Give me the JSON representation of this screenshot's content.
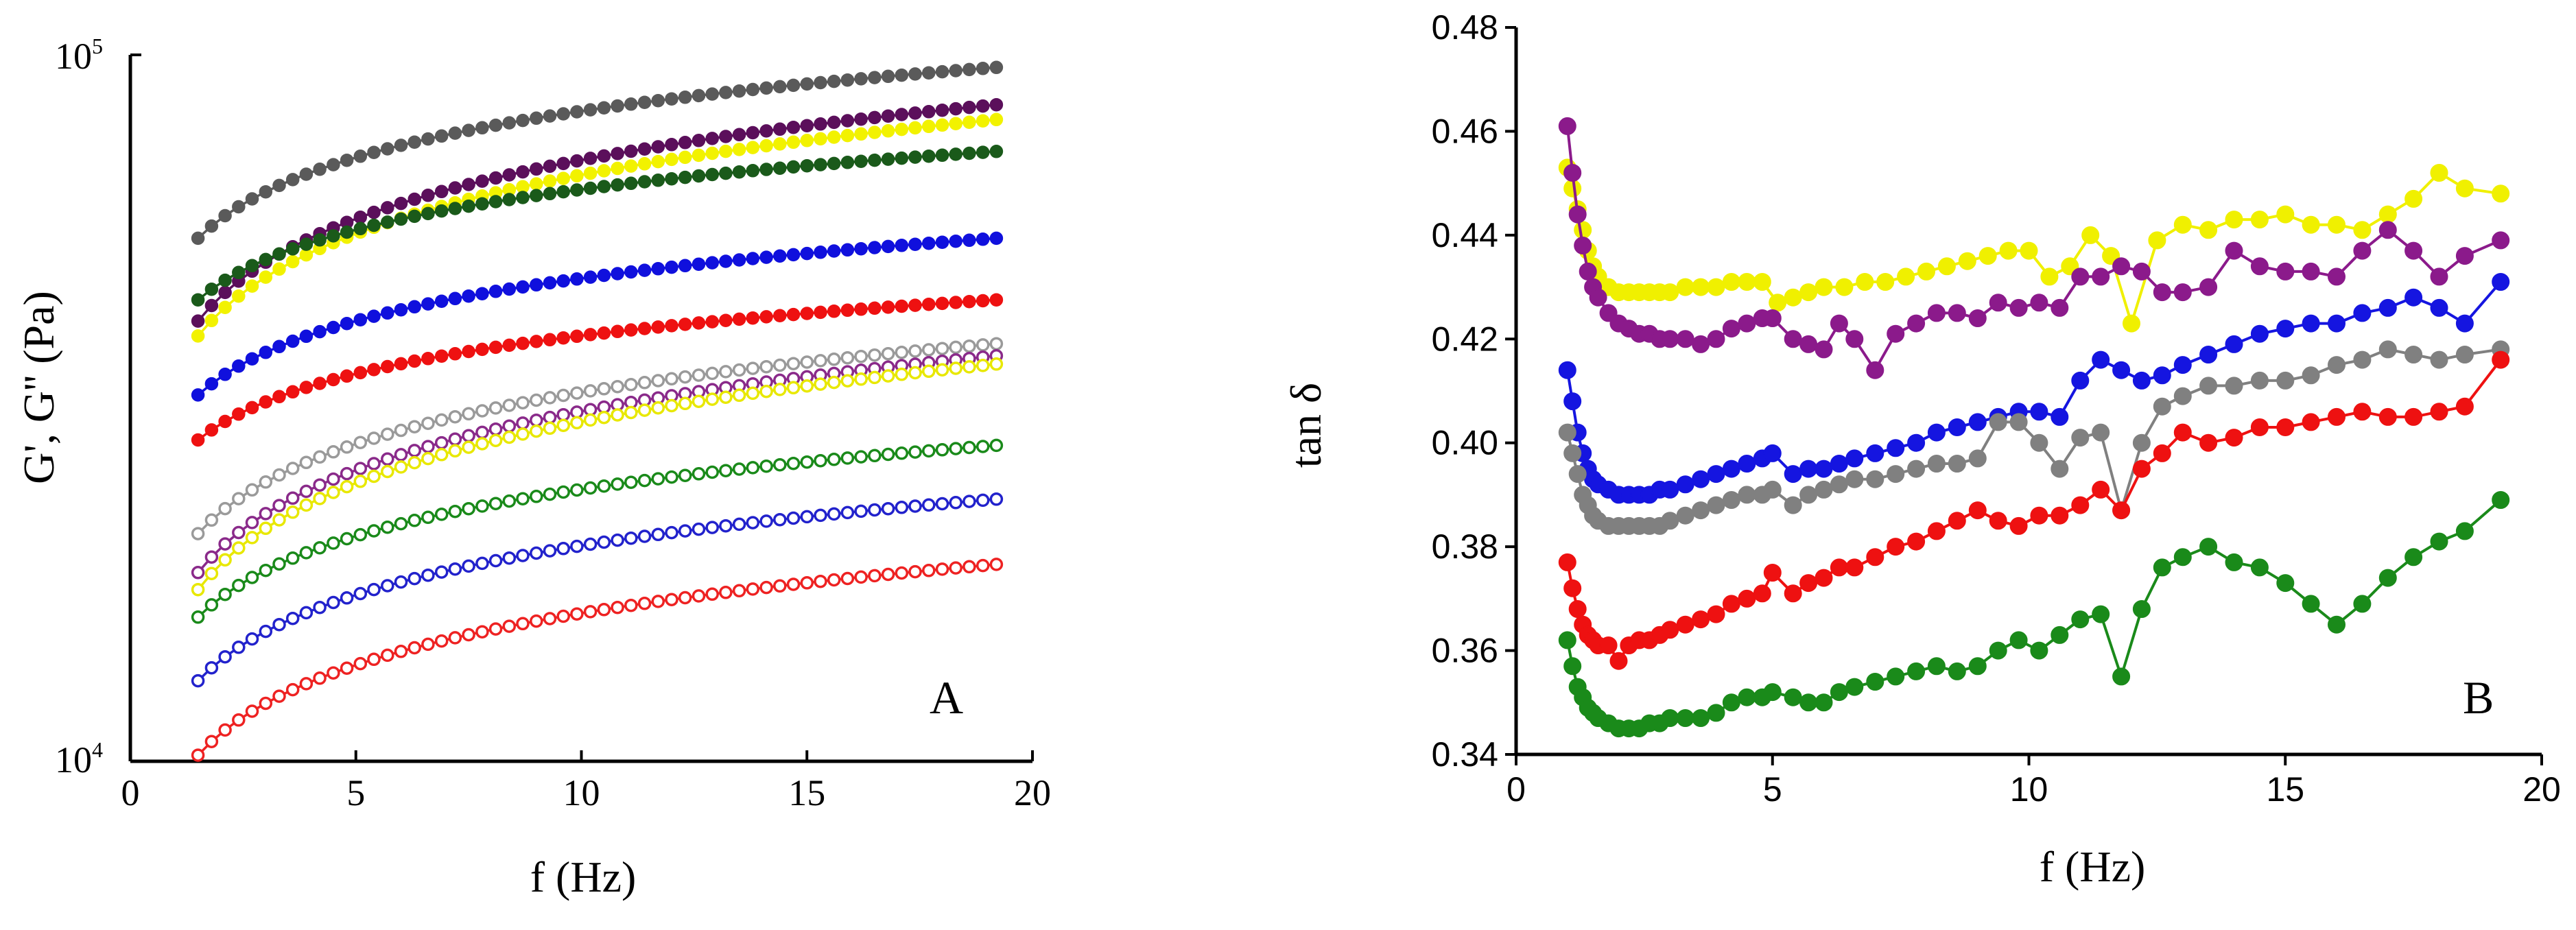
{
  "chart_data": [
    {
      "type": "scatter",
      "panel": "A",
      "xlabel": "f (Hz)",
      "ylabel": "G', G'' (Pa)",
      "xlim": [
        0,
        20
      ],
      "ylim": [
        10000,
        100000
      ],
      "yscale": "log",
      "xticks": [
        0,
        5,
        10,
        15,
        20
      ],
      "xtick_labels": [
        "0",
        "5",
        "10",
        "15",
        "20"
      ],
      "ytick_labels": [
        {
          "base": "10",
          "exp": "4",
          "value": 10000
        },
        {
          "base": "10",
          "exp": "5",
          "value": 100000
        }
      ],
      "series": [
        {
          "name": "G' gray",
          "color": "#5a5a5a",
          "filled": true,
          "f_start": 1.5,
          "f_end": 19.2,
          "v_start": 55000,
          "v_end": 96000
        },
        {
          "name": "G' purple",
          "color": "#5b0f5b",
          "filled": true,
          "f_start": 1.5,
          "f_end": 19.2,
          "v_start": 42000,
          "v_end": 85000
        },
        {
          "name": "G' yellow",
          "color": "#f2f200",
          "filled": true,
          "f_start": 1.5,
          "f_end": 19.2,
          "v_start": 40000,
          "v_end": 81000
        },
        {
          "name": "G' green",
          "color": "#1a5a1a",
          "filled": true,
          "f_start": 1.5,
          "f_end": 19.2,
          "v_start": 45000,
          "v_end": 73000
        },
        {
          "name": "G' blue",
          "color": "#1010dd",
          "filled": true,
          "f_start": 1.5,
          "f_end": 19.2,
          "v_start": 33000,
          "v_end": 55000
        },
        {
          "name": "G' red",
          "color": "#ee1111",
          "filled": true,
          "f_start": 1.5,
          "f_end": 19.2,
          "v_start": 28500,
          "v_end": 45000
        },
        {
          "name": "G'' gray",
          "color": "#9a9a9a",
          "filled": false,
          "f_start": 1.5,
          "f_end": 19.2,
          "v_start": 21000,
          "v_end": 39000
        },
        {
          "name": "G'' purple",
          "color": "#8a2a8a",
          "filled": false,
          "f_start": 1.5,
          "f_end": 19.2,
          "v_start": 18500,
          "v_end": 37500
        },
        {
          "name": "G'' yellow",
          "color": "#e8e800",
          "filled": false,
          "f_start": 1.5,
          "f_end": 19.2,
          "v_start": 17500,
          "v_end": 36500
        },
        {
          "name": "G'' green",
          "color": "#1a8a1a",
          "filled": false,
          "f_start": 1.5,
          "f_end": 19.2,
          "v_start": 16000,
          "v_end": 28000
        },
        {
          "name": "G'' blue",
          "color": "#2222cc",
          "filled": false,
          "f_start": 1.5,
          "f_end": 19.2,
          "v_start": 13000,
          "v_end": 23500
        },
        {
          "name": "G'' red",
          "color": "#ee2222",
          "filled": false,
          "f_start": 1.5,
          "f_end": 19.2,
          "v_start": 10200,
          "v_end": 19000
        }
      ]
    },
    {
      "type": "line",
      "panel": "B",
      "xlabel": "f (Hz)",
      "ylabel": "tan δ",
      "xlim": [
        0,
        20
      ],
      "ylim": [
        0.34,
        0.48
      ],
      "xticks": [
        0,
        5,
        10,
        15,
        20
      ],
      "xtick_labels": [
        "0",
        "5",
        "10",
        "15",
        "20"
      ],
      "yticks": [
        0.34,
        0.36,
        0.38,
        0.4,
        0.42,
        0.44,
        0.46,
        0.48
      ],
      "ytick_labels": [
        "0.34",
        "0.36",
        "0.38",
        "0.40",
        "0.42",
        "0.44",
        "0.46",
        "0.48"
      ],
      "series": [
        {
          "name": "yellow",
          "color": "#f0f000",
          "x": [
            1.0,
            1.1,
            1.2,
            1.3,
            1.4,
            1.5,
            1.6,
            1.8,
            2.0,
            2.2,
            2.4,
            2.6,
            2.8,
            3.0,
            3.3,
            3.6,
            3.9,
            4.2,
            4.5,
            4.8,
            5.1,
            5.4,
            5.7,
            6.0,
            6.4,
            6.8,
            7.2,
            7.6,
            8.0,
            8.4,
            8.8,
            9.2,
            9.6,
            10.0,
            10.4,
            10.8,
            11.2,
            11.6,
            12.0,
            12.5,
            13.0,
            13.5,
            14.0,
            14.5,
            15.0,
            15.5,
            16.0,
            16.5,
            17.0,
            17.5,
            18.0,
            18.5,
            19.2
          ],
          "y": [
            0.453,
            0.449,
            0.445,
            0.441,
            0.437,
            0.434,
            0.432,
            0.43,
            0.429,
            0.429,
            0.429,
            0.429,
            0.429,
            0.429,
            0.43,
            0.43,
            0.43,
            0.431,
            0.431,
            0.431,
            0.427,
            0.428,
            0.429,
            0.43,
            0.43,
            0.431,
            0.431,
            0.432,
            0.433,
            0.434,
            0.435,
            0.436,
            0.437,
            0.437,
            0.432,
            0.434,
            0.44,
            0.436,
            0.423,
            0.439,
            0.442,
            0.441,
            0.443,
            0.443,
            0.444,
            0.442,
            0.442,
            0.441,
            0.444,
            0.447,
            0.452,
            0.449,
            0.448
          ]
        },
        {
          "name": "purple",
          "color": "#8b1a8b",
          "x": [
            1.0,
            1.1,
            1.2,
            1.3,
            1.4,
            1.5,
            1.6,
            1.8,
            2.0,
            2.2,
            2.4,
            2.6,
            2.8,
            3.0,
            3.3,
            3.6,
            3.9,
            4.2,
            4.5,
            4.8,
            5.0,
            5.4,
            5.7,
            6.0,
            6.3,
            6.6,
            7.0,
            7.4,
            7.8,
            8.2,
            8.6,
            9.0,
            9.4,
            9.8,
            10.2,
            10.6,
            11.0,
            11.4,
            11.8,
            12.2,
            12.6,
            13.0,
            13.5,
            14.0,
            14.5,
            15.0,
            15.5,
            16.0,
            16.5,
            17.0,
            17.5,
            18.0,
            18.5,
            19.2
          ],
          "y": [
            0.461,
            0.452,
            0.444,
            0.438,
            0.433,
            0.43,
            0.428,
            0.425,
            0.423,
            0.422,
            0.421,
            0.421,
            0.42,
            0.42,
            0.42,
            0.419,
            0.42,
            0.422,
            0.423,
            0.424,
            0.424,
            0.42,
            0.419,
            0.418,
            0.423,
            0.42,
            0.414,
            0.421,
            0.423,
            0.425,
            0.425,
            0.424,
            0.427,
            0.426,
            0.427,
            0.426,
            0.432,
            0.432,
            0.434,
            0.433,
            0.429,
            0.429,
            0.43,
            0.437,
            0.434,
            0.433,
            0.433,
            0.432,
            0.437,
            0.441,
            0.437,
            0.432,
            0.436,
            0.439
          ]
        },
        {
          "name": "blue",
          "color": "#1515e0",
          "x": [
            1.0,
            1.1,
            1.2,
            1.3,
            1.4,
            1.5,
            1.6,
            1.8,
            2.0,
            2.2,
            2.4,
            2.6,
            2.8,
            3.0,
            3.3,
            3.6,
            3.9,
            4.2,
            4.5,
            4.8,
            5.0,
            5.4,
            5.7,
            6.0,
            6.3,
            6.6,
            7.0,
            7.4,
            7.8,
            8.2,
            8.6,
            9.0,
            9.4,
            9.8,
            10.2,
            10.6,
            11.0,
            11.4,
            11.8,
            12.2,
            12.6,
            13.0,
            13.5,
            14.0,
            14.5,
            15.0,
            15.5,
            16.0,
            16.5,
            17.0,
            17.5,
            18.0,
            18.5,
            19.2
          ],
          "y": [
            0.414,
            0.408,
            0.402,
            0.398,
            0.395,
            0.393,
            0.392,
            0.391,
            0.39,
            0.39,
            0.39,
            0.39,
            0.391,
            0.391,
            0.392,
            0.393,
            0.394,
            0.395,
            0.396,
            0.397,
            0.398,
            0.394,
            0.395,
            0.395,
            0.396,
            0.397,
            0.398,
            0.399,
            0.4,
            0.402,
            0.403,
            0.404,
            0.405,
            0.406,
            0.406,
            0.405,
            0.412,
            0.416,
            0.414,
            0.412,
            0.413,
            0.415,
            0.417,
            0.419,
            0.421,
            0.422,
            0.423,
            0.423,
            0.425,
            0.426,
            0.428,
            0.426,
            0.423,
            0.431
          ]
        },
        {
          "name": "gray",
          "color": "#808080",
          "x": [
            1.0,
            1.1,
            1.2,
            1.3,
            1.4,
            1.5,
            1.6,
            1.8,
            2.0,
            2.2,
            2.4,
            2.6,
            2.8,
            3.0,
            3.3,
            3.6,
            3.9,
            4.2,
            4.5,
            4.8,
            5.0,
            5.4,
            5.7,
            6.0,
            6.3,
            6.6,
            7.0,
            7.4,
            7.8,
            8.2,
            8.6,
            9.0,
            9.4,
            9.8,
            10.2,
            10.6,
            11.0,
            11.4,
            11.8,
            12.2,
            12.6,
            13.0,
            13.5,
            14.0,
            14.5,
            15.0,
            15.5,
            16.0,
            16.5,
            17.0,
            17.5,
            18.0,
            18.5,
            19.2
          ],
          "y": [
            0.402,
            0.398,
            0.394,
            0.39,
            0.388,
            0.386,
            0.385,
            0.384,
            0.384,
            0.384,
            0.384,
            0.384,
            0.384,
            0.385,
            0.386,
            0.387,
            0.388,
            0.389,
            0.39,
            0.39,
            0.391,
            0.388,
            0.39,
            0.391,
            0.392,
            0.393,
            0.393,
            0.394,
            0.395,
            0.396,
            0.396,
            0.397,
            0.404,
            0.404,
            0.4,
            0.395,
            0.401,
            0.402,
            0.387,
            0.4,
            0.407,
            0.409,
            0.411,
            0.411,
            0.412,
            0.412,
            0.413,
            0.415,
            0.416,
            0.418,
            0.417,
            0.416,
            0.417,
            0.418
          ]
        },
        {
          "name": "red",
          "color": "#ee1111",
          "x": [
            1.0,
            1.1,
            1.2,
            1.3,
            1.4,
            1.5,
            1.6,
            1.8,
            2.0,
            2.2,
            2.4,
            2.6,
            2.8,
            3.0,
            3.3,
            3.6,
            3.9,
            4.2,
            4.5,
            4.8,
            5.0,
            5.4,
            5.7,
            6.0,
            6.3,
            6.6,
            7.0,
            7.4,
            7.8,
            8.2,
            8.6,
            9.0,
            9.4,
            9.8,
            10.2,
            10.6,
            11.0,
            11.4,
            11.8,
            12.2,
            12.6,
            13.0,
            13.5,
            14.0,
            14.5,
            15.0,
            15.5,
            16.0,
            16.5,
            17.0,
            17.5,
            18.0,
            18.5,
            19.2
          ],
          "y": [
            0.377,
            0.372,
            0.368,
            0.365,
            0.363,
            0.362,
            0.361,
            0.361,
            0.358,
            0.361,
            0.362,
            0.362,
            0.363,
            0.364,
            0.365,
            0.366,
            0.367,
            0.369,
            0.37,
            0.371,
            0.375,
            0.371,
            0.373,
            0.374,
            0.376,
            0.376,
            0.378,
            0.38,
            0.381,
            0.383,
            0.385,
            0.387,
            0.385,
            0.384,
            0.386,
            0.386,
            0.388,
            0.391,
            0.387,
            0.395,
            0.398,
            0.402,
            0.4,
            0.401,
            0.403,
            0.403,
            0.404,
            0.405,
            0.406,
            0.405,
            0.405,
            0.406,
            0.407,
            0.416
          ]
        },
        {
          "name": "green",
          "color": "#1a8a1a",
          "x": [
            1.0,
            1.1,
            1.2,
            1.3,
            1.4,
            1.5,
            1.6,
            1.8,
            2.0,
            2.2,
            2.4,
            2.6,
            2.8,
            3.0,
            3.3,
            3.6,
            3.9,
            4.2,
            4.5,
            4.8,
            5.0,
            5.4,
            5.7,
            6.0,
            6.3,
            6.6,
            7.0,
            7.4,
            7.8,
            8.2,
            8.6,
            9.0,
            9.4,
            9.8,
            10.2,
            10.6,
            11.0,
            11.4,
            11.8,
            12.2,
            12.6,
            13.0,
            13.5,
            14.0,
            14.5,
            15.0,
            15.5,
            16.0,
            16.5,
            17.0,
            17.5,
            18.0,
            18.5,
            19.2
          ],
          "y": [
            0.362,
            0.357,
            0.353,
            0.351,
            0.349,
            0.348,
            0.347,
            0.346,
            0.345,
            0.345,
            0.345,
            0.346,
            0.346,
            0.347,
            0.347,
            0.347,
            0.348,
            0.35,
            0.351,
            0.351,
            0.352,
            0.351,
            0.35,
            0.35,
            0.352,
            0.353,
            0.354,
            0.355,
            0.356,
            0.357,
            0.356,
            0.357,
            0.36,
            0.362,
            0.36,
            0.363,
            0.366,
            0.367,
            0.355,
            0.368,
            0.376,
            0.378,
            0.38,
            0.377,
            0.376,
            0.373,
            0.369,
            0.365,
            0.369,
            0.374,
            0.378,
            0.381,
            0.383,
            0.389
          ]
        }
      ]
    }
  ]
}
